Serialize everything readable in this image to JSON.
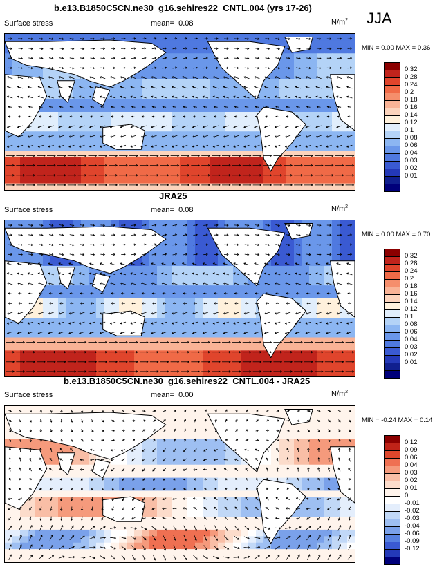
{
  "season": "JJA",
  "panels": [
    {
      "title": "b.e13.B1850C5CN.ne30_g16.sehires22_CNTL.004 (yrs 17-26)",
      "left_label": "Surface stress",
      "mean_label": "mean=",
      "mean_value": "0.08",
      "units_base": "N/m",
      "units_exp": "2",
      "min_label": "MIN =",
      "min_value": "0.00",
      "max_label": "MAX =",
      "max_value": "0.36",
      "colorbar": {
        "colors": [
          "#8b0000",
          "#c1241c",
          "#e0452c",
          "#f06a47",
          "#f58e6c",
          "#f9b396",
          "#fcd4bd",
          "#fff1dc",
          "#e1eefc",
          "#b4d3f7",
          "#8cb6f2",
          "#6a97ea",
          "#4f79e0",
          "#3a5ad2",
          "#2439b8",
          "#101f8e",
          "#00007a"
        ],
        "labels": [
          "0.32",
          "0.28",
          "0.24",
          "0.2",
          "0.18",
          "0.16",
          "0.14",
          "0.12",
          "0.1",
          "0.08",
          "0.06",
          "0.04",
          "0.03",
          "0.02",
          "0.01"
        ]
      }
    },
    {
      "title": "JRA25",
      "left_label": "Surface stress",
      "mean_label": "mean=",
      "mean_value": "0.08",
      "units_base": "N/m",
      "units_exp": "2",
      "min_label": "MIN =",
      "min_value": "0.00",
      "max_label": "MAX =",
      "max_value": "0.70",
      "colorbar": {
        "colors": [
          "#8b0000",
          "#c1241c",
          "#e0452c",
          "#f06a47",
          "#f58e6c",
          "#f9b396",
          "#fcd4bd",
          "#fff1dc",
          "#e1eefc",
          "#b4d3f7",
          "#8cb6f2",
          "#6a97ea",
          "#4f79e0",
          "#3a5ad2",
          "#2439b8",
          "#101f8e",
          "#00007a"
        ],
        "labels": [
          "0.32",
          "0.28",
          "0.24",
          "0.2",
          "0.18",
          "0.16",
          "0.14",
          "0.12",
          "0.1",
          "0.08",
          "0.06",
          "0.04",
          "0.03",
          "0.02",
          "0.01"
        ]
      }
    },
    {
      "title": "b.e13.B1850C5CN.ne30_g16.sehires22_CNTL.004 - JRA25",
      "left_label": "Surface stress",
      "mean_label": "mean=",
      "mean_value": "0.00",
      "units_base": "N/m",
      "units_exp": "2",
      "min_label": "MIN =",
      "min_value": "-0.24",
      "max_label": "MAX =",
      "max_value": "0.14",
      "colorbar": {
        "colors": [
          "#8b0000",
          "#bf2318",
          "#de472c",
          "#ef7052",
          "#f59a7c",
          "#f9bea6",
          "#fcdccb",
          "#fff4ec",
          "#ffffff",
          "#e4eefc",
          "#c1d8f7",
          "#9ebff2",
          "#7aa1ea",
          "#5781e0",
          "#3a5ad2",
          "#2439b8",
          "#00007a"
        ],
        "labels": [
          "0.12",
          "0.09",
          "0.06",
          "0.04",
          "0.03",
          "0.02",
          "0.01",
          "0",
          "-0.01",
          "-0.02",
          "-0.03",
          "-0.04",
          "-0.06",
          "-0.09",
          "-0.12"
        ]
      }
    }
  ],
  "chart_data": {
    "type": "heatmap",
    "description_fields": "global maps of surface wind stress magnitude with vector arrows",
    "maps": [
      {
        "name": "model",
        "mean": 0.08,
        "min": 0.0,
        "max": 0.36,
        "units": "N/m2"
      },
      {
        "name": "JRA25",
        "mean": 0.08,
        "min": 0.0,
        "max": 0.7,
        "units": "N/m2"
      },
      {
        "name": "difference",
        "mean": 0.0,
        "min": -0.24,
        "max": 0.14,
        "units": "N/m2"
      }
    ]
  }
}
